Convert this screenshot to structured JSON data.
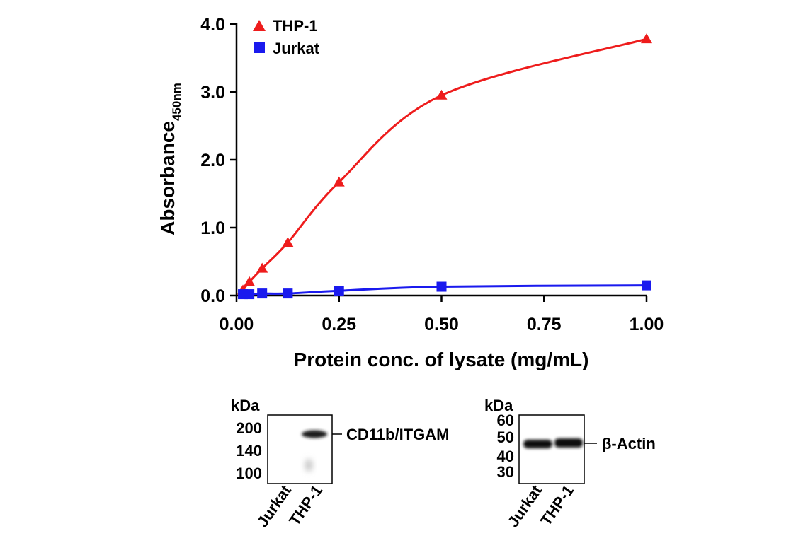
{
  "chart_data": {
    "type": "line",
    "xlabel": "Protein conc. of lysate (mg/mL)",
    "ylabel": "Absorbance",
    "ylabel_subscript": "450nm",
    "xlim": [
      0,
      1.0
    ],
    "ylim": [
      0,
      4.0
    ],
    "x_ticks": [
      "0.00",
      "0.25",
      "0.50",
      "0.75",
      "1.00"
    ],
    "y_ticks": [
      "0.0",
      "1.0",
      "2.0",
      "3.0",
      "4.0"
    ],
    "x_tick_values": [
      0,
      0.25,
      0.5,
      0.75,
      1.0
    ],
    "y_tick_values": [
      0,
      1,
      2,
      3,
      4
    ],
    "legend_position": "top-left",
    "grid": false,
    "series": [
      {
        "name": "THP-1",
        "color": "#ee1c1c",
        "marker": "triangle",
        "x": [
          0.0156,
          0.0313,
          0.0625,
          0.125,
          0.25,
          0.5,
          1.0
        ],
        "y": [
          0.08,
          0.2,
          0.4,
          0.78,
          1.67,
          2.95,
          3.78
        ]
      },
      {
        "name": "Jurkat",
        "color": "#1a1aee",
        "marker": "square",
        "x": [
          0.0156,
          0.0313,
          0.0625,
          0.125,
          0.25,
          0.5,
          1.0
        ],
        "y": [
          0.02,
          0.02,
          0.03,
          0.03,
          0.07,
          0.13,
          0.15
        ]
      }
    ]
  },
  "blots": [
    {
      "unit_label": "kDa",
      "markers": [
        "200",
        "140",
        "100"
      ],
      "band_label": "CD11b/ITGAM",
      "lanes": [
        "Jurkat",
        "THP-1"
      ]
    },
    {
      "unit_label": "kDa",
      "markers": [
        "60",
        "50",
        "40",
        "30"
      ],
      "band_label": "β-Actin",
      "lanes": [
        "Jurkat",
        "THP-1"
      ]
    }
  ]
}
